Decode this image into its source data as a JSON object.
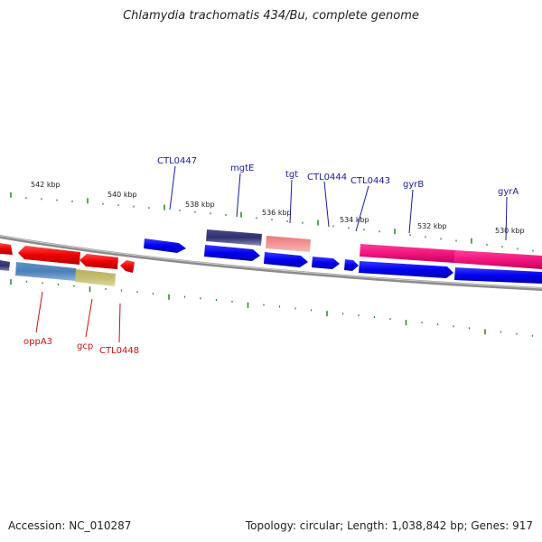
{
  "map": {
    "title": "Chlamydia trachomatis 434/Bu, complete genome",
    "accession_text": "Accession: NC_010287",
    "summary_text": "Topology: circular; Length: 1,038,842 bp; Genes: 917"
  },
  "colors": {
    "background": "#ffffff",
    "backbone": "#8c8c8c",
    "tick": "#1f8a1f",
    "forward_label": "#1a1aa6",
    "reverse_label": "#cc1111",
    "scale_label": "#222222"
  },
  "scale_labels": [
    "542 kbp",
    "540 kbp",
    "538 kbp",
    "536 kbp",
    "534 kbp",
    "532 kbp",
    "530 kbp"
  ],
  "forward_labels": [
    "CTL0447",
    "mgtE",
    "tgt",
    "CTL0444",
    "CTL0443",
    "gyrB",
    "gyrA"
  ],
  "reverse_labels": [
    "oppA3",
    "gcp",
    "CTL0448"
  ]
}
